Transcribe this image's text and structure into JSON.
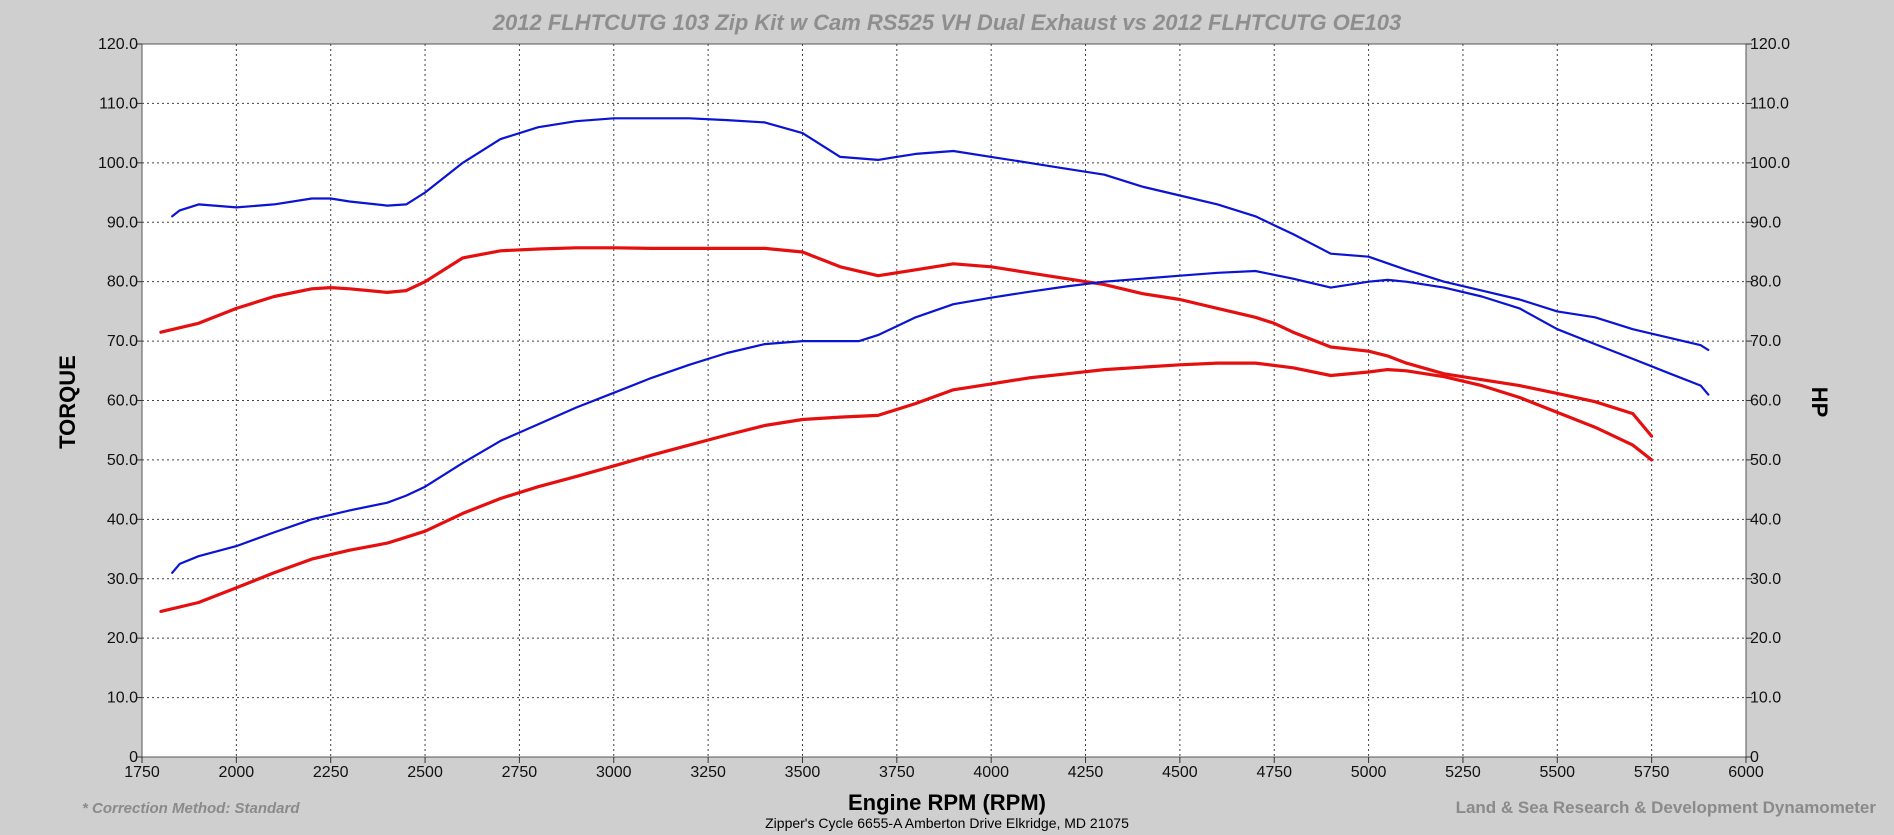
{
  "chart_data": {
    "type": "line",
    "title": "2012 FLHTCUTG 103 Zip Kit w Cam RS525 VH Dual Exhaust vs 2012 FLHTCUTG OE103",
    "xlabel": "Engine RPM (RPM)",
    "ylabel_left": "TORQUE",
    "ylabel_right": "HP",
    "xlim": [
      1750,
      6000
    ],
    "ylim": [
      0,
      120
    ],
    "x_ticks": [
      "1750",
      "2000",
      "2250",
      "2500",
      "2750",
      "3000",
      "3250",
      "3500",
      "3750",
      "4000",
      "4250",
      "4500",
      "4750",
      "5000",
      "5250",
      "5500",
      "5750",
      "6000"
    ],
    "y_ticks": [
      "0",
      "10.0",
      "20.0",
      "30.0",
      "40.0",
      "50.0",
      "60.0",
      "70.0",
      "80.0",
      "90.0",
      "100.0",
      "110.0",
      "120.0"
    ],
    "grid": true,
    "colors": {
      "blue": "#0a14d2",
      "red": "#e60f0f"
    },
    "series": [
      {
        "color": "blue",
        "axis": "TORQUE",
        "x": [
          1830,
          1850,
          1900,
          2000,
          2100,
          2200,
          2250,
          2300,
          2400,
          2450,
          2500,
          2600,
          2700,
          2800,
          2900,
          3000,
          3100,
          3200,
          3300,
          3400,
          3500,
          3600,
          3700,
          3800,
          3900,
          4000,
          4100,
          4200,
          4300,
          4400,
          4500,
          4600,
          4700,
          4750,
          4800,
          4900,
          5000,
          5100,
          5200,
          5300,
          5400,
          5500,
          5600,
          5700,
          5800,
          5880,
          5900
        ],
        "y": [
          91,
          92,
          93,
          92.5,
          93,
          94,
          94,
          93.5,
          92.8,
          93,
          95,
          100,
          104,
          106,
          107,
          107.5,
          107.5,
          107.5,
          107.2,
          106.8,
          105,
          101,
          100.5,
          101.5,
          102,
          101,
          100,
          99,
          98,
          96,
          94.5,
          93,
          91,
          89.5,
          88,
          84.7,
          84.2,
          82,
          80,
          78.5,
          77,
          75,
          74,
          72,
          70.5,
          69.3,
          68.5
        ]
      },
      {
        "color": "red",
        "axis": "TORQUE",
        "x": [
          1800,
          1900,
          2000,
          2100,
          2200,
          2250,
          2300,
          2400,
          2450,
          2500,
          2600,
          2700,
          2800,
          2900,
          3000,
          3100,
          3200,
          3300,
          3400,
          3500,
          3600,
          3700,
          3800,
          3900,
          4000,
          4100,
          4200,
          4300,
          4400,
          4500,
          4600,
          4700,
          4750,
          4800,
          4900,
          5000,
          5050,
          5100,
          5200,
          5300,
          5400,
          5500,
          5600,
          5700,
          5750
        ],
        "y": [
          71.5,
          73,
          75.5,
          77.5,
          78.8,
          79,
          78.8,
          78.2,
          78.5,
          80,
          84,
          85.2,
          85.5,
          85.7,
          85.7,
          85.6,
          85.6,
          85.6,
          85.6,
          85,
          82.5,
          81,
          82,
          83,
          82.5,
          81.5,
          80.5,
          79.5,
          78,
          77,
          75.5,
          74,
          73,
          71.5,
          69,
          68.3,
          67.5,
          66.3,
          64.5,
          63.5,
          62.5,
          61.2,
          59.8,
          57.8,
          54
        ]
      },
      {
        "color": "blue",
        "axis": "HP",
        "x": [
          1830,
          1850,
          1900,
          2000,
          2100,
          2200,
          2300,
          2400,
          2450,
          2500,
          2600,
          2700,
          2800,
          2900,
          3000,
          3100,
          3200,
          3300,
          3400,
          3500,
          3600,
          3650,
          3700,
          3800,
          3900,
          4000,
          4100,
          4200,
          4300,
          4400,
          4500,
          4600,
          4700,
          4800,
          4900,
          5000,
          5050,
          5100,
          5200,
          5300,
          5400,
          5500,
          5600,
          5700,
          5800,
          5880,
          5900
        ],
        "y": [
          31,
          32.5,
          33.8,
          35.5,
          37.8,
          40,
          41.5,
          42.8,
          44,
          45.5,
          49.5,
          53.2,
          56,
          58.8,
          61.3,
          63.8,
          66,
          68,
          69.5,
          70,
          70,
          70,
          71,
          74,
          76.2,
          77.3,
          78.3,
          79.2,
          80,
          80.5,
          81,
          81.5,
          81.8,
          80.5,
          79,
          80,
          80.3,
          80,
          79,
          77.5,
          75.5,
          72,
          69.5,
          67,
          64.5,
          62.5,
          61
        ]
      },
      {
        "color": "red",
        "axis": "HP",
        "x": [
          1800,
          1900,
          2000,
          2100,
          2200,
          2300,
          2400,
          2450,
          2500,
          2600,
          2700,
          2800,
          2900,
          3000,
          3100,
          3200,
          3300,
          3400,
          3500,
          3600,
          3700,
          3800,
          3900,
          4000,
          4100,
          4200,
          4300,
          4400,
          4500,
          4600,
          4700,
          4800,
          4900,
          5000,
          5050,
          5100,
          5200,
          5300,
          5400,
          5500,
          5600,
          5700,
          5750
        ],
        "y": [
          24.5,
          26,
          28.5,
          31,
          33.3,
          34.8,
          36,
          37,
          38,
          41,
          43.5,
          45.5,
          47.2,
          49,
          50.8,
          52.5,
          54.2,
          55.8,
          56.8,
          57.2,
          57.5,
          59.5,
          61.8,
          62.8,
          63.8,
          64.5,
          65.2,
          65.6,
          66,
          66.3,
          66.3,
          65.5,
          64.2,
          64.8,
          65.2,
          65,
          64,
          62.5,
          60.5,
          58,
          55.5,
          52.5,
          50
        ]
      }
    ]
  },
  "footer": {
    "left": "* Correction Method: Standard",
    "center": "Zipper's Cycle 6655-A Amberton Drive Elkridge, MD 21075",
    "right": "Land & Sea Research & Development Dynamometer"
  }
}
